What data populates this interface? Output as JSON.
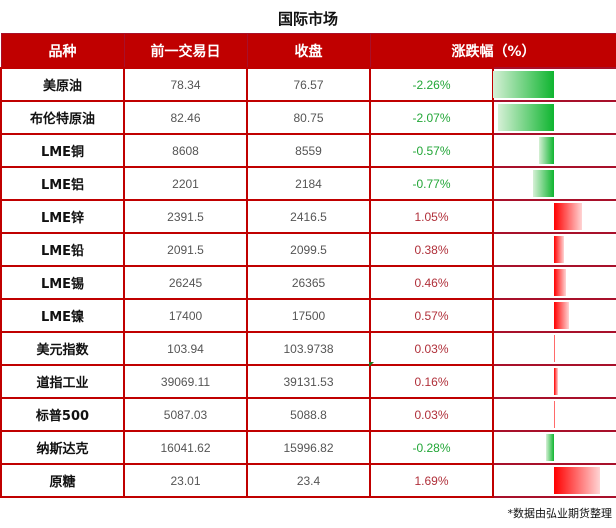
{
  "title": "国际市场",
  "headers": [
    "品种",
    "前一交易日",
    "收盘",
    "涨跌幅（%）"
  ],
  "rows": [
    {
      "name": "美原油",
      "prev": "78.34",
      "close": "76.57",
      "change": "-2.26%",
      "value": -2.26
    },
    {
      "name": "布伦特原油",
      "prev": "82.46",
      "close": "80.75",
      "change": "-2.07%",
      "value": -2.07
    },
    {
      "name": "LME铜",
      "prev": "8608",
      "close": "8559",
      "change": "-0.57%",
      "value": -0.57
    },
    {
      "name": "LME铝",
      "prev": "2201",
      "close": "2184",
      "change": "-0.77%",
      "value": -0.77
    },
    {
      "name": "LME锌",
      "prev": "2391.5",
      "close": "2416.5",
      "change": "1.05%",
      "value": 1.05
    },
    {
      "name": "LME铅",
      "prev": "2091.5",
      "close": "2099.5",
      "change": "0.38%",
      "value": 0.38
    },
    {
      "name": "LME锡",
      "prev": "26245",
      "close": "26365",
      "change": "0.46%",
      "value": 0.46
    },
    {
      "name": "LME镍",
      "prev": "17400",
      "close": "17500",
      "change": "0.57%",
      "value": 0.57
    },
    {
      "name": "美元指数",
      "prev": "103.94",
      "close": "103.9738",
      "change": "0.03%",
      "value": 0.03
    },
    {
      "name": "道指工业",
      "prev": "39069.11",
      "close": "39131.53",
      "change": "0.16%",
      "value": 0.16
    },
    {
      "name": "标普500",
      "prev": "5087.03",
      "close": "5088.8",
      "change": "0.03%",
      "value": 0.03
    },
    {
      "name": "纳斯达克",
      "prev": "16041.62",
      "close": "15996.82",
      "change": "-0.28%",
      "value": -0.28
    },
    {
      "name": "原糖",
      "prev": "23.01",
      "close": "23.4",
      "change": "1.69%",
      "value": 1.69
    }
  ],
  "footnote": "*数据由弘业期货整理",
  "colors": {
    "header_bg": "#c00000",
    "positive": "#b0303a",
    "negative": "#22a637",
    "bar_pos": "#ff0000",
    "bar_neg": "#0fb530"
  }
}
